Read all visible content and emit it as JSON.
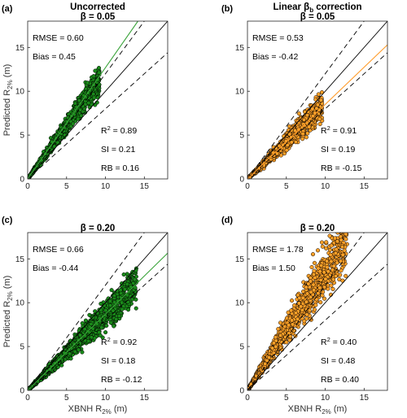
{
  "figure": {
    "x_axis_label": "XBNH R",
    "x_axis_subscript": "2%",
    "x_axis_unit": " (m)",
    "y_axis_label": "Predicted R",
    "y_axis_subscript": "2%",
    "y_axis_unit": " (m)"
  },
  "colors": {
    "green_fill": "#1a8a1a",
    "green_fit": "#3aa33a",
    "orange_fill": "#ffa128",
    "orange_fit": "#ff9c2a",
    "marker_edge": "#000000",
    "reference_line": "#000000"
  },
  "chart_data": [
    {
      "type": "scatter",
      "panel_label": "(a)",
      "title_line1": "Uncorrected",
      "title_line2": "β = 0.05",
      "xlim": [
        0,
        18
      ],
      "ylim": [
        0,
        18
      ],
      "xticks": [
        0,
        5,
        10,
        15
      ],
      "yticks": [
        0,
        5,
        10,
        15
      ],
      "marker_color": "#1a8a1a",
      "fit_color": "#3aa33a",
      "fit_line": {
        "slope": 1.27,
        "intercept": 0
      },
      "reference_lines": [
        {
          "slope": 1,
          "style": "solid"
        },
        {
          "slope": 1.2,
          "style": "dashed"
        },
        {
          "slope": 0.8,
          "style": "dashed"
        }
      ],
      "cloud": {
        "n": 1600,
        "xmax": 9.2,
        "slope": 1.23,
        "spread": 0.09,
        "seed": 11
      },
      "stats_top": [
        {
          "label": "RMSE",
          "value": "0.60"
        },
        {
          "label": "Bias",
          "value": "0.45"
        }
      ],
      "stats_bottom": [
        {
          "label": "R",
          "sup": "2",
          "value": "0.89"
        },
        {
          "label": "SI",
          "value": "0.21"
        },
        {
          "label": "RB",
          "value": "0.16"
        }
      ]
    },
    {
      "type": "scatter",
      "panel_label": "(b)",
      "title_line1": "Linear β",
      "title_line1_sub": "b",
      "title_line1_suffix": " correction",
      "title_line2": "β = 0.05",
      "xlim": [
        0,
        18
      ],
      "ylim": [
        0,
        18
      ],
      "xticks": [
        0,
        5,
        10,
        15
      ],
      "yticks": [
        0,
        5,
        10,
        15
      ],
      "marker_color": "#ffa128",
      "fit_color": "#ff9c2a",
      "fit_line": {
        "slope": 0.85,
        "intercept": 0
      },
      "reference_lines": [
        {
          "slope": 1,
          "style": "solid"
        },
        {
          "slope": 1.2,
          "style": "dashed"
        },
        {
          "slope": 0.8,
          "style": "dashed"
        }
      ],
      "cloud": {
        "n": 1600,
        "xmax": 9.6,
        "slope": 0.85,
        "spread": 0.08,
        "seed": 23
      },
      "stats_top": [
        {
          "label": "RMSE",
          "value": "0.53"
        },
        {
          "label": "Bias",
          "value": "-0.42"
        }
      ],
      "stats_bottom": [
        {
          "label": "R",
          "sup": "2",
          "value": "0.91"
        },
        {
          "label": "SI",
          "value": "0.19"
        },
        {
          "label": "RB",
          "value": "-0.15"
        }
      ]
    },
    {
      "type": "scatter",
      "panel_label": "(c)",
      "title_line1": "",
      "title_line2": "β = 0.20",
      "xlim": [
        0,
        18
      ],
      "ylim": [
        0,
        18
      ],
      "xticks": [
        0,
        5,
        10,
        15
      ],
      "yticks": [
        0,
        5,
        10,
        15
      ],
      "marker_color": "#1a8a1a",
      "fit_color": "#3aa33a",
      "fit_line": {
        "slope": 0.87,
        "intercept": 0
      },
      "reference_lines": [
        {
          "slope": 1,
          "style": "solid"
        },
        {
          "slope": 1.2,
          "style": "dashed"
        },
        {
          "slope": 0.8,
          "style": "dashed"
        }
      ],
      "cloud": {
        "n": 1700,
        "xmax": 14.0,
        "slope": 0.86,
        "spread": 0.08,
        "seed": 37
      },
      "stats_top": [
        {
          "label": "RMSE",
          "value": "0.66"
        },
        {
          "label": "Bias",
          "value": "-0.44"
        }
      ],
      "stats_bottom": [
        {
          "label": "R",
          "sup": "2",
          "value": "0.92"
        },
        {
          "label": "SI",
          "value": "0.18"
        },
        {
          "label": "RB",
          "value": "-0.12"
        }
      ]
    },
    {
      "type": "scatter",
      "panel_label": "(d)",
      "title_line1": "",
      "title_line2": "β = 0.20",
      "xlim": [
        0,
        18
      ],
      "ylim": [
        0,
        18
      ],
      "xticks": [
        0,
        5,
        10,
        15
      ],
      "yticks": [
        0,
        5,
        10,
        15
      ],
      "marker_color": "#ffa128",
      "fit_color": "#ff9c2a",
      "fit_line": null,
      "reference_lines": [
        {
          "slope": 1,
          "style": "solid"
        },
        {
          "slope": 1.2,
          "style": "dashed"
        },
        {
          "slope": 0.8,
          "style": "dashed"
        }
      ],
      "cloud": {
        "n": 1500,
        "xmax": 12.8,
        "slope": 1.38,
        "spread": 0.14,
        "seed": 53
      },
      "stats_top": [
        {
          "label": "RMSE",
          "value": "1.78"
        },
        {
          "label": "Bias",
          "value": "1.50"
        }
      ],
      "stats_bottom": [
        {
          "label": "R",
          "sup": "2",
          "value": "0.40"
        },
        {
          "label": "SI",
          "value": "0.48"
        },
        {
          "label": "RB",
          "value": "0.40"
        }
      ]
    }
  ]
}
